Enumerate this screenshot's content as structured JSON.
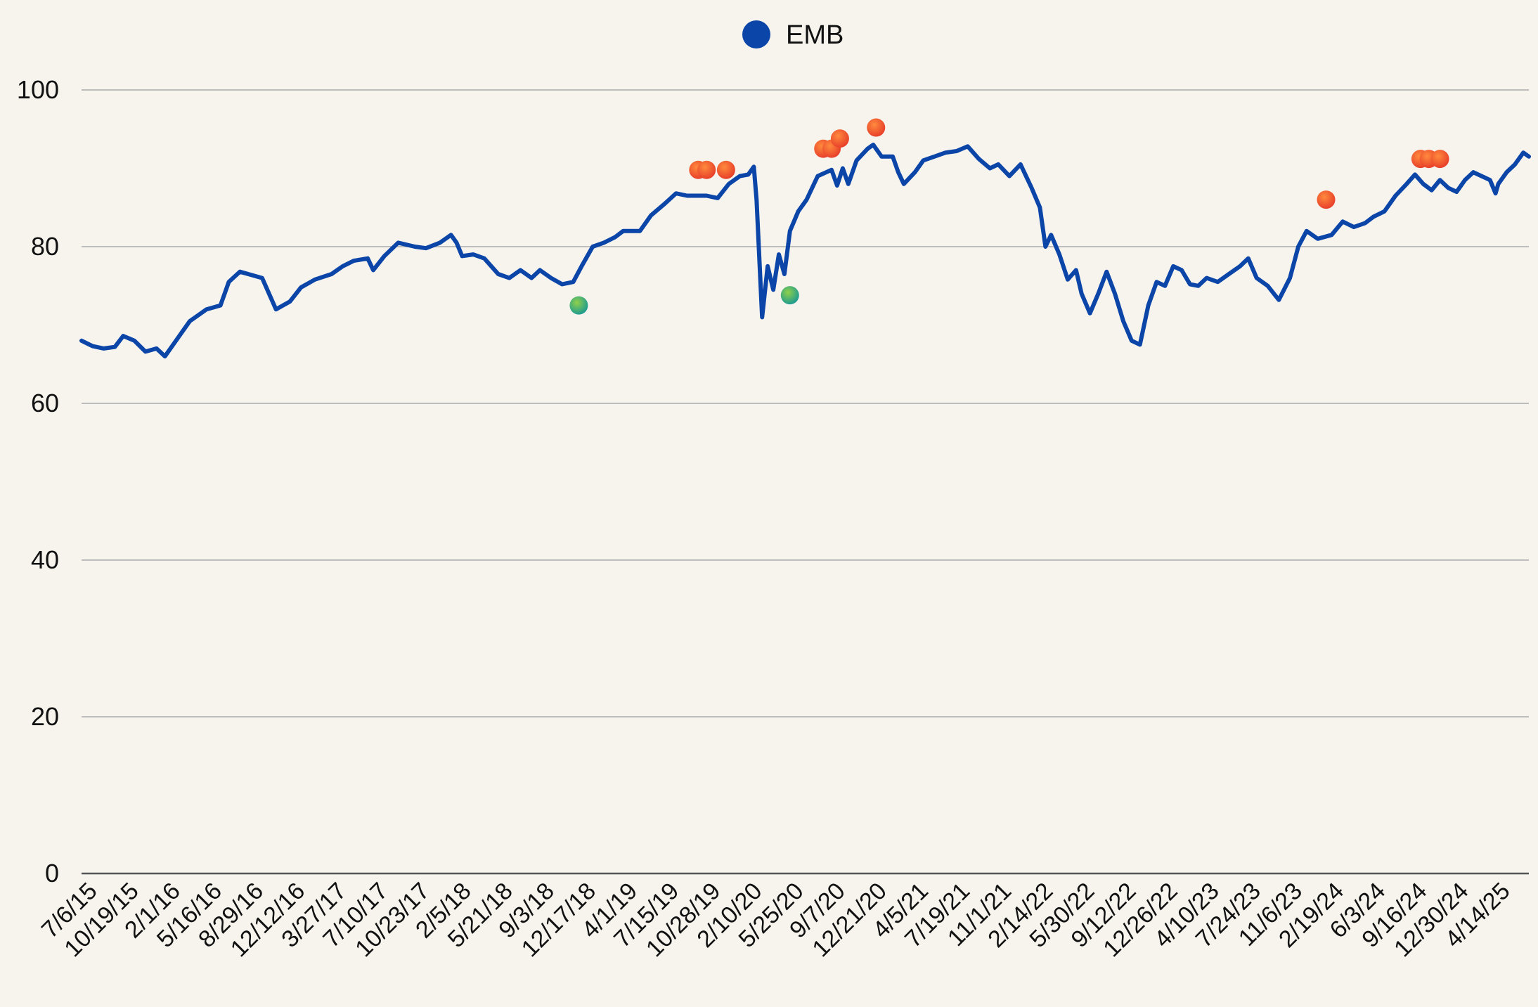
{
  "chart_data": {
    "type": "line",
    "legend": {
      "position": "top-center",
      "entries": [
        {
          "name": "EMB",
          "color": "#0b45a8"
        }
      ]
    },
    "colors": {
      "line": "#0b45a8",
      "sell_marker": "#f2552c",
      "buy_marker": "#2fae73",
      "grid": "#bdbdbd",
      "background": "#f7f4ee"
    },
    "ylim": [
      0,
      100
    ],
    "yticks": [
      "0",
      "20",
      "40",
      "60",
      "80",
      "100"
    ],
    "grid": true,
    "x_tick_labels": [
      "7/6/15",
      "10/19/15",
      "2/1/16",
      "5/16/16",
      "8/29/16",
      "12/12/16",
      "3/27/17",
      "7/10/17",
      "10/23/17",
      "2/5/18",
      "5/21/18",
      "9/3/18",
      "12/17/18",
      "4/1/19",
      "7/15/19",
      "10/28/19",
      "2/10/20",
      "5/25/20",
      "9/7/20",
      "12/21/20",
      "4/5/21",
      "7/19/21",
      "11/1/21",
      "2/14/22",
      "5/30/22",
      "9/12/22",
      "12/26/22",
      "4/10/23",
      "7/24/23",
      "11/6/23",
      "2/19/24",
      "6/3/24",
      "9/16/24",
      "12/30/24",
      "4/14/25"
    ],
    "series": [
      {
        "name": "EMB",
        "points": [
          [
            "2015-07-06",
            68.0
          ],
          [
            "2015-08-03",
            67.3
          ],
          [
            "2015-08-31",
            67.0
          ],
          [
            "2015-09-28",
            67.2
          ],
          [
            "2015-10-19",
            68.6
          ],
          [
            "2015-11-16",
            68.0
          ],
          [
            "2015-12-14",
            66.6
          ],
          [
            "2016-01-11",
            67.0
          ],
          [
            "2016-02-01",
            66.0
          ],
          [
            "2016-03-07",
            68.5
          ],
          [
            "2016-04-04",
            70.5
          ],
          [
            "2016-05-02",
            71.5
          ],
          [
            "2016-05-16",
            72.0
          ],
          [
            "2016-06-20",
            72.5
          ],
          [
            "2016-07-11",
            75.5
          ],
          [
            "2016-08-08",
            76.8
          ],
          [
            "2016-08-29",
            76.5
          ],
          [
            "2016-10-03",
            76.0
          ],
          [
            "2016-11-07",
            72.0
          ],
          [
            "2016-12-12",
            73.0
          ],
          [
            "2017-01-09",
            74.8
          ],
          [
            "2017-02-13",
            75.8
          ],
          [
            "2017-03-27",
            76.5
          ],
          [
            "2017-04-24",
            77.5
          ],
          [
            "2017-05-22",
            78.2
          ],
          [
            "2017-06-26",
            78.5
          ],
          [
            "2017-07-10",
            77.0
          ],
          [
            "2017-08-07",
            78.8
          ],
          [
            "2017-09-11",
            80.5
          ],
          [
            "2017-10-23",
            80.0
          ],
          [
            "2017-11-20",
            79.8
          ],
          [
            "2017-12-25",
            80.5
          ],
          [
            "2018-01-22",
            81.5
          ],
          [
            "2018-02-05",
            80.5
          ],
          [
            "2018-02-19",
            78.8
          ],
          [
            "2018-03-19",
            79.0
          ],
          [
            "2018-04-16",
            78.5
          ],
          [
            "2018-05-21",
            76.5
          ],
          [
            "2018-06-18",
            76.0
          ],
          [
            "2018-07-16",
            77.0
          ],
          [
            "2018-08-13",
            76.0
          ],
          [
            "2018-09-03",
            77.0
          ],
          [
            "2018-10-01",
            76.0
          ],
          [
            "2018-10-29",
            75.2
          ],
          [
            "2018-11-26",
            75.5
          ],
          [
            "2018-12-17",
            77.5
          ],
          [
            "2019-01-14",
            80.0
          ],
          [
            "2019-02-11",
            80.5
          ],
          [
            "2019-03-11",
            81.2
          ],
          [
            "2019-04-01",
            82.0
          ],
          [
            "2019-05-13",
            82.0
          ],
          [
            "2019-06-10",
            84.0
          ],
          [
            "2019-07-15",
            85.5
          ],
          [
            "2019-08-12",
            86.8
          ],
          [
            "2019-09-09",
            86.5
          ],
          [
            "2019-10-28",
            86.5
          ],
          [
            "2019-11-25",
            86.2
          ],
          [
            "2019-12-23",
            88.0
          ],
          [
            "2020-01-20",
            89.0
          ],
          [
            "2020-02-10",
            89.2
          ],
          [
            "2020-02-24",
            90.2
          ],
          [
            "2020-03-02",
            86.0
          ],
          [
            "2020-03-16",
            71.0
          ],
          [
            "2020-03-30",
            77.5
          ],
          [
            "2020-04-13",
            74.5
          ],
          [
            "2020-04-27",
            79.0
          ],
          [
            "2020-05-11",
            76.5
          ],
          [
            "2020-05-25",
            82.0
          ],
          [
            "2020-06-15",
            84.5
          ],
          [
            "2020-07-06",
            86.0
          ],
          [
            "2020-08-03",
            89.0
          ],
          [
            "2020-09-07",
            89.8
          ],
          [
            "2020-09-21",
            87.8
          ],
          [
            "2020-10-05",
            90.0
          ],
          [
            "2020-10-19",
            88.0
          ],
          [
            "2020-11-09",
            91.0
          ],
          [
            "2020-12-07",
            92.5
          ],
          [
            "2020-12-21",
            93.0
          ],
          [
            "2021-01-11",
            91.5
          ],
          [
            "2021-02-08",
            91.5
          ],
          [
            "2021-02-22",
            89.5
          ],
          [
            "2021-03-08",
            88.0
          ],
          [
            "2021-04-05",
            89.5
          ],
          [
            "2021-04-26",
            91.0
          ],
          [
            "2021-05-24",
            91.5
          ],
          [
            "2021-06-21",
            92.0
          ],
          [
            "2021-07-19",
            92.2
          ],
          [
            "2021-08-16",
            92.8
          ],
          [
            "2021-09-13",
            91.2
          ],
          [
            "2021-10-11",
            90.0
          ],
          [
            "2021-11-01",
            90.5
          ],
          [
            "2021-11-29",
            89.0
          ],
          [
            "2021-12-27",
            90.5
          ],
          [
            "2022-01-24",
            87.5
          ],
          [
            "2022-02-14",
            85.0
          ],
          [
            "2022-02-28",
            80.0
          ],
          [
            "2022-03-14",
            81.5
          ],
          [
            "2022-04-04",
            79.0
          ],
          [
            "2022-04-25",
            75.8
          ],
          [
            "2022-05-16",
            77.0
          ],
          [
            "2022-05-30",
            74.0
          ],
          [
            "2022-06-20",
            71.5
          ],
          [
            "2022-07-11",
            74.0
          ],
          [
            "2022-08-01",
            76.8
          ],
          [
            "2022-08-22",
            74.0
          ],
          [
            "2022-09-12",
            70.5
          ],
          [
            "2022-10-03",
            68.0
          ],
          [
            "2022-10-24",
            67.5
          ],
          [
            "2022-11-14",
            72.5
          ],
          [
            "2022-12-05",
            75.5
          ],
          [
            "2022-12-26",
            75.0
          ],
          [
            "2023-01-16",
            77.5
          ],
          [
            "2023-02-06",
            77.0
          ],
          [
            "2023-02-27",
            75.2
          ],
          [
            "2023-03-20",
            75.0
          ],
          [
            "2023-04-10",
            76.0
          ],
          [
            "2023-05-08",
            75.5
          ],
          [
            "2023-06-05",
            76.5
          ],
          [
            "2023-07-03",
            77.5
          ],
          [
            "2023-07-24",
            78.5
          ],
          [
            "2023-08-14",
            76.0
          ],
          [
            "2023-09-11",
            75.0
          ],
          [
            "2023-10-09",
            73.2
          ],
          [
            "2023-11-06",
            76.0
          ],
          [
            "2023-11-27",
            80.0
          ],
          [
            "2023-12-18",
            82.0
          ],
          [
            "2024-01-15",
            81.0
          ],
          [
            "2024-02-19",
            81.5
          ],
          [
            "2024-03-18",
            83.2
          ],
          [
            "2024-04-15",
            82.5
          ],
          [
            "2024-05-13",
            83.0
          ],
          [
            "2024-06-03",
            83.8
          ],
          [
            "2024-07-01",
            84.5
          ],
          [
            "2024-07-29",
            86.5
          ],
          [
            "2024-08-26",
            88.0
          ],
          [
            "2024-09-16",
            89.2
          ],
          [
            "2024-10-07",
            88.0
          ],
          [
            "2024-10-28",
            87.2
          ],
          [
            "2024-11-18",
            88.5
          ],
          [
            "2024-12-09",
            87.5
          ],
          [
            "2024-12-30",
            87.0
          ],
          [
            "2025-01-20",
            88.5
          ],
          [
            "2025-02-10",
            89.5
          ],
          [
            "2025-03-03",
            89.0
          ],
          [
            "2025-03-24",
            88.5
          ],
          [
            "2025-04-07",
            86.8
          ],
          [
            "2025-04-14",
            88.0
          ],
          [
            "2025-05-05",
            89.5
          ],
          [
            "2025-05-26",
            90.5
          ],
          [
            "2025-06-16",
            92.0
          ],
          [
            "2025-06-30",
            91.5
          ]
        ]
      }
    ],
    "markers": [
      {
        "type": "buy",
        "date": "2018-12-10",
        "value": 72.5
      },
      {
        "type": "sell",
        "date": "2019-10-07",
        "value": 89.8
      },
      {
        "type": "sell",
        "date": "2019-10-28",
        "value": 89.8
      },
      {
        "type": "sell",
        "date": "2019-12-16",
        "value": 89.8
      },
      {
        "type": "buy",
        "date": "2020-05-25",
        "value": 73.8
      },
      {
        "type": "sell",
        "date": "2020-08-17",
        "value": 92.5
      },
      {
        "type": "sell",
        "date": "2020-09-07",
        "value": 92.5
      },
      {
        "type": "sell",
        "date": "2020-09-28",
        "value": 93.8
      },
      {
        "type": "sell",
        "date": "2020-12-28",
        "value": 95.2
      },
      {
        "type": "sell",
        "date": "2024-02-05",
        "value": 86.0
      },
      {
        "type": "sell",
        "date": "2024-09-30",
        "value": 91.2
      },
      {
        "type": "sell",
        "date": "2024-10-21",
        "value": 91.2
      },
      {
        "type": "sell",
        "date": "2024-11-18",
        "value": 91.2
      }
    ]
  }
}
